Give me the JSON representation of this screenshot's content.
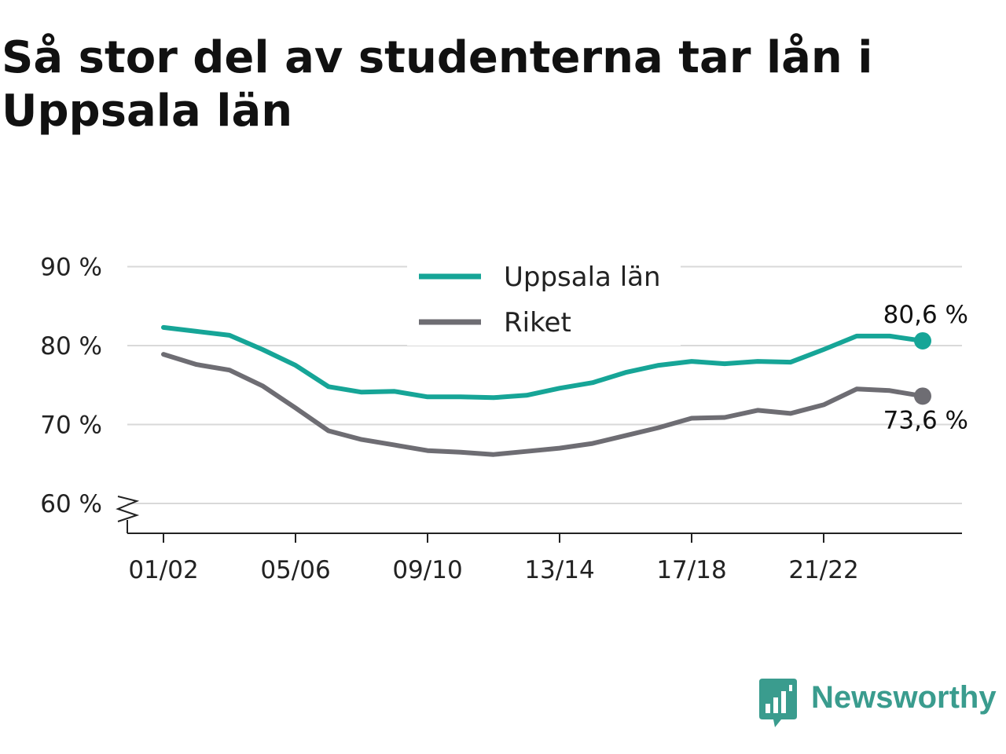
{
  "title": "Så stor del av studenterna tar lån i Uppsala län",
  "brand": {
    "name": "Newsworthy",
    "logo_icon": "bar-chart-speech-bubble-icon"
  },
  "colors": {
    "uppsala": "#16a597",
    "riket": "#6e6d73",
    "grid": "#d9d9d9",
    "axis": "#222222",
    "brand": "#3a9c8e"
  },
  "chart_data": {
    "type": "line",
    "title": "Så stor del av studenterna tar lån i Uppsala län",
    "x": [
      "01/02",
      "02/03",
      "03/04",
      "04/05",
      "05/06",
      "06/07",
      "07/08",
      "08/09",
      "09/10",
      "10/11",
      "11/12",
      "12/13",
      "13/14",
      "14/15",
      "15/16",
      "16/17",
      "17/18",
      "18/19",
      "19/20",
      "20/21",
      "21/22",
      "22/23",
      "23/24",
      "24/25"
    ],
    "x_tick_labels": [
      "01/02",
      "05/06",
      "09/10",
      "13/14",
      "17/18",
      "21/22"
    ],
    "y_ticks": [
      60,
      70,
      80,
      90
    ],
    "y_tick_labels": [
      "60 %",
      "70 %",
      "80 %",
      "90 %"
    ],
    "ylim": [
      56,
      93
    ],
    "y_axis_break": true,
    "grid": true,
    "legend": "top-center",
    "series": [
      {
        "name": "Uppsala län",
        "color": "#16a597",
        "values": [
          82.3,
          81.8,
          81.3,
          79.5,
          77.5,
          74.8,
          74.1,
          74.2,
          73.5,
          73.5,
          73.4,
          73.7,
          74.6,
          75.3,
          76.6,
          77.5,
          78.0,
          77.7,
          78.0,
          77.9,
          79.5,
          81.2,
          81.2,
          80.6
        ],
        "end_label": "80,6 %"
      },
      {
        "name": "Riket",
        "color": "#6e6d73",
        "values": [
          78.9,
          77.6,
          76.9,
          74.9,
          72.1,
          69.2,
          68.1,
          67.4,
          66.7,
          66.5,
          66.2,
          66.6,
          67.0,
          67.6,
          68.6,
          69.6,
          70.8,
          70.9,
          71.8,
          71.4,
          72.5,
          74.5,
          74.3,
          73.6
        ],
        "end_label": "73,6 %"
      }
    ]
  }
}
